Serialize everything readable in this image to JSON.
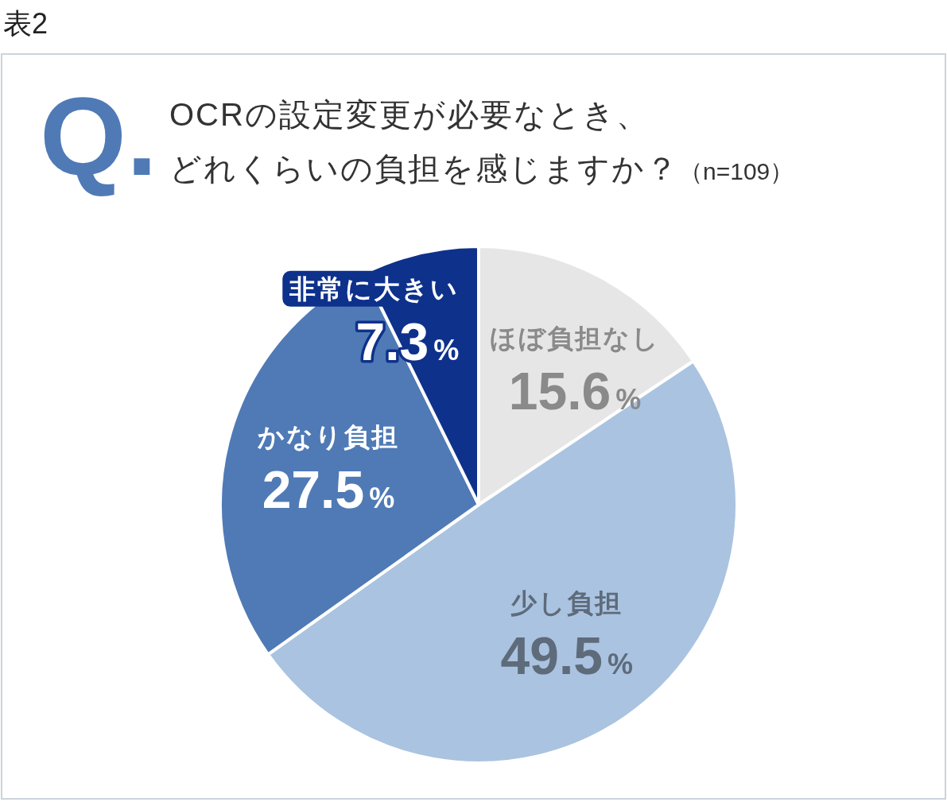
{
  "chart_data": {
    "type": "pie",
    "title": "OCRの設定変更が必要なとき、どれくらいの負担を感じますか？",
    "subtitle": "（n=109）",
    "annotations": [
      "表2",
      "Q."
    ],
    "categories": [
      "ほぼ負担なし",
      "少し負担",
      "かなり負担",
      "非常に大きい"
    ],
    "values": [
      15.6,
      49.5,
      27.5,
      7.3
    ],
    "colors": [
      "#e6e6e6",
      "#aac3e0",
      "#4f7ab6",
      "#0e318c"
    ],
    "value_labels": [
      "15.6%",
      "49.5%",
      "27.5%",
      "7.3%"
    ]
  }
}
